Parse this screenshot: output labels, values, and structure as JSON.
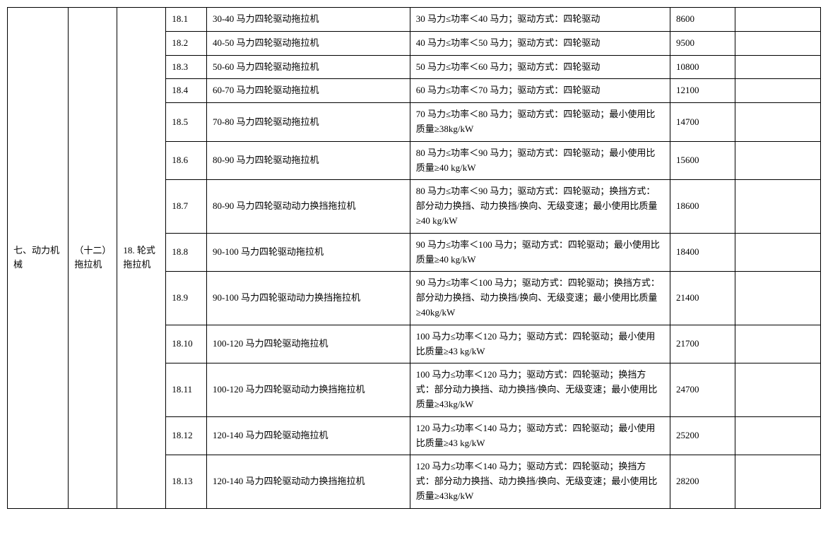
{
  "table": {
    "category1": "七、动力机械",
    "category2": "（十二）拖拉机",
    "category3": "18. 轮式拖拉机",
    "rows": [
      {
        "idx": "18.1",
        "name": "30-40 马力四轮驱动拖拉机",
        "spec": "30 马力≤功率＜40 马力；驱动方式：四轮驱动",
        "val": "8600",
        "last": ""
      },
      {
        "idx": "18.2",
        "name": "40-50 马力四轮驱动拖拉机",
        "spec": "40 马力≤功率＜50 马力；驱动方式：四轮驱动",
        "val": "9500",
        "last": ""
      },
      {
        "idx": "18.3",
        "name": "50-60 马力四轮驱动拖拉机",
        "spec": "50 马力≤功率＜60 马力；驱动方式：四轮驱动",
        "val": "10800",
        "last": ""
      },
      {
        "idx": "18.4",
        "name": "60-70 马力四轮驱动拖拉机",
        "spec": "60 马力≤功率＜70 马力；驱动方式：四轮驱动",
        "val": "12100",
        "last": ""
      },
      {
        "idx": "18.5",
        "name": "70-80 马力四轮驱动拖拉机",
        "spec": "70 马力≤功率＜80 马力；驱动方式：四轮驱动；最小使用比质量≥38kg/kW",
        "val": "14700",
        "last": ""
      },
      {
        "idx": "18.6",
        "name": "80-90 马力四轮驱动拖拉机",
        "spec": "80 马力≤功率＜90 马力；驱动方式：四轮驱动；最小使用比质量≥40 kg/kW",
        "val": "15600",
        "last": ""
      },
      {
        "idx": "18.7",
        "name": "80-90 马力四轮驱动动力换挡拖拉机",
        "spec": "80 马力≤功率＜90 马力；驱动方式：四轮驱动；换挡方式：部分动力换挡、动力换挡/换向、无级变速；最小使用比质量≥40 kg/kW",
        "val": "18600",
        "last": ""
      },
      {
        "idx": "18.8",
        "name": "90-100 马力四轮驱动拖拉机",
        "spec": "90 马力≤功率＜100 马力；驱动方式：四轮驱动；最小使用比质量≥40 kg/kW",
        "val": "18400",
        "last": ""
      },
      {
        "idx": "18.9",
        "name": "90-100 马力四轮驱动动力换挡拖拉机",
        "spec": "90 马力≤功率＜100 马力；驱动方式：四轮驱动；换挡方式：部分动力换挡、动力换挡/换向、无级变速；最小使用比质量≥40kg/kW",
        "val": "21400",
        "last": ""
      },
      {
        "idx": "18.10",
        "name": "100-120 马力四轮驱动拖拉机",
        "spec": "100 马力≤功率＜120 马力；驱动方式：四轮驱动；最小使用比质量≥43 kg/kW",
        "val": "21700",
        "last": ""
      },
      {
        "idx": "18.11",
        "name": "100-120 马力四轮驱动动力换挡拖拉机",
        "spec": "100 马力≤功率＜120 马力；驱动方式：四轮驱动；换挡方式：部分动力换挡、动力换挡/换向、无级变速；最小使用比质量≥43kg/kW",
        "val": "24700",
        "last": ""
      },
      {
        "idx": "18.12",
        "name": "120-140 马力四轮驱动拖拉机",
        "spec": "120 马力≤功率＜140 马力；驱动方式：四轮驱动；最小使用比质量≥43 kg/kW",
        "val": "25200",
        "last": ""
      },
      {
        "idx": "18.13",
        "name": "120-140 马力四轮驱动动力换挡拖拉机",
        "spec": "120 马力≤功率＜140 马力；驱动方式：四轮驱动；换挡方式：部分动力换挡、动力换挡/换向、无级变速；最小使用比质量≥43kg/kW",
        "val": "28200",
        "last": ""
      }
    ]
  }
}
